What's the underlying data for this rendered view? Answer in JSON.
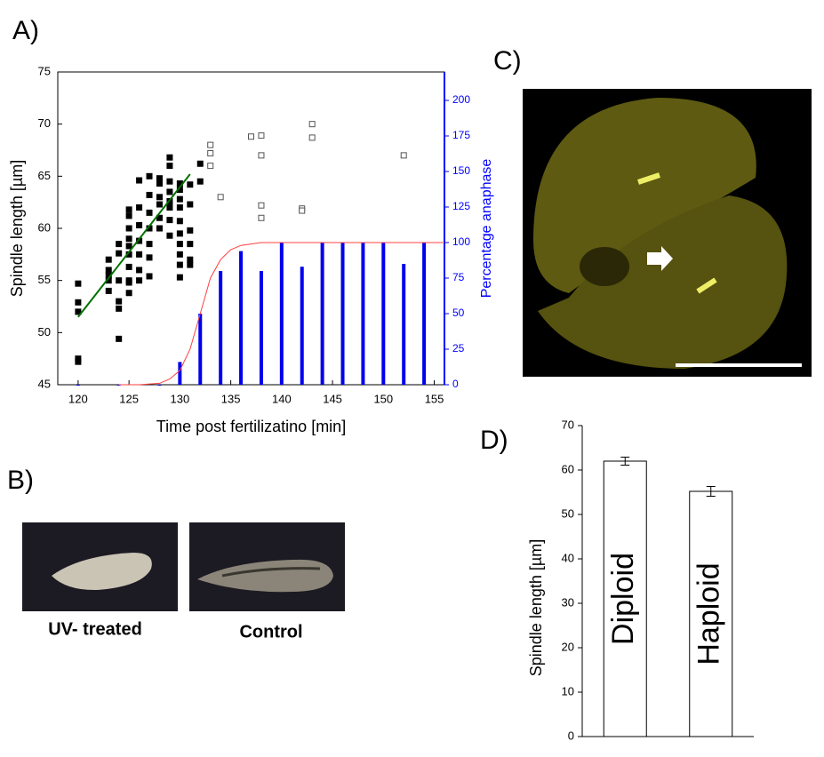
{
  "figure_labels": [
    "A)",
    "B)",
    "C)",
    "D)"
  ],
  "image_captions": [
    "UV- treated",
    "Control"
  ],
  "chart_data": [
    {
      "type": "scatter",
      "xlabel": "Time post fertilizatino [min]",
      "ylabel": "Spindle length [µm]",
      "y2label": "Percentage anaphase",
      "xlim": [
        118,
        156
      ],
      "xticks": [
        120,
        125,
        130,
        135,
        140,
        145,
        150,
        155
      ],
      "ylim": [
        45,
        75
      ],
      "yticks": [
        45,
        50,
        55,
        60,
        65,
        70,
        75
      ],
      "y2lim": [
        0,
        220
      ],
      "y2ticks": [
        0,
        25,
        50,
        75,
        100,
        125,
        150,
        175,
        200
      ],
      "y2color": "#0000ff",
      "series": [
        {
          "marker": "bar",
          "axis": "y2",
          "color": "#0000ee",
          "x": [
            120,
            124,
            128,
            130,
            132,
            134,
            136,
            138,
            140,
            142,
            144,
            146,
            148,
            150,
            152,
            154
          ],
          "values": [
            0,
            0,
            0,
            16,
            50,
            80,
            94,
            80,
            100,
            83,
            100,
            100,
            100,
            100,
            85,
            100
          ]
        },
        {
          "marker": "line",
          "axis": "y2",
          "color": "#ff4040",
          "x": [
            124,
            126,
            128,
            129,
            130,
            131,
            132,
            133,
            134,
            135,
            136,
            137,
            138,
            140,
            145,
            150,
            156
          ],
          "values": [
            0,
            0,
            1,
            4,
            10,
            25,
            50,
            75,
            88,
            95,
            98,
            99,
            100,
            100,
            100,
            100,
            100
          ]
        },
        {
          "marker": "square-filled",
          "color": "#000000",
          "x": [
            120,
            120,
            120,
            120,
            120,
            123,
            123,
            123,
            123,
            123,
            124,
            124,
            124,
            124,
            124,
            124,
            125,
            125,
            125,
            125,
            125,
            125,
            125,
            125,
            125,
            125,
            126,
            126,
            126,
            126,
            126,
            126,
            126,
            127,
            127,
            127,
            127,
            127,
            127,
            127,
            128,
            128,
            128,
            128,
            128,
            128,
            129,
            129,
            129,
            129,
            129,
            129,
            129,
            129,
            130,
            130,
            130,
            130,
            130,
            130,
            130,
            130,
            130,
            130,
            131,
            131,
            131,
            131,
            131,
            131,
            132,
            132
          ],
          "values": [
            54.7,
            52.9,
            52.0,
            47.5,
            47.2,
            56.0,
            55.5,
            54.0,
            57.0,
            55.0,
            57.6,
            55.0,
            53.0,
            52.3,
            49.4,
            58.5,
            61.8,
            61.2,
            60.0,
            59.0,
            58.3,
            57.5,
            56.3,
            55.0,
            53.8,
            54.8,
            64.6,
            62.0,
            60.3,
            58.8,
            57.5,
            56.0,
            55.0,
            65.0,
            63.2,
            61.5,
            60.0,
            58.5,
            57.2,
            55.4,
            64.3,
            63.0,
            62.3,
            61.0,
            60.0,
            64.8,
            66.8,
            66.0,
            64.5,
            63.5,
            62.6,
            62.0,
            60.8,
            59.3,
            64.3,
            63.7,
            62.8,
            60.7,
            59.5,
            58.5,
            57.5,
            56.5,
            55.3,
            62.0,
            64.2,
            62.3,
            59.8,
            58.5,
            57.0,
            56.5,
            66.2,
            64.5
          ]
        },
        {
          "marker": "square-open",
          "color": "#555555",
          "x": [
            133,
            133,
            133,
            134,
            137,
            138,
            138,
            138,
            138,
            142,
            142,
            143,
            143,
            152
          ],
          "values": [
            68.0,
            67.2,
            66.0,
            63.0,
            68.8,
            68.9,
            67.0,
            62.2,
            61.0,
            61.9,
            61.7,
            70.0,
            68.7,
            67.0
          ]
        },
        {
          "marker": "line",
          "color": "#007000",
          "x": [
            120,
            131
          ],
          "values": [
            51.5,
            65.2
          ]
        }
      ]
    },
    {
      "type": "bar",
      "ylabel": "Spindle length [µm]",
      "categories": [
        "Diploid",
        "Haploid"
      ],
      "values": [
        62,
        55.2
      ],
      "errors": [
        0.9,
        1.1
      ],
      "color": "#ffffff",
      "ylim": [
        0,
        70
      ],
      "yticks": [
        0,
        10,
        20,
        30,
        40,
        50,
        60,
        70
      ]
    }
  ]
}
